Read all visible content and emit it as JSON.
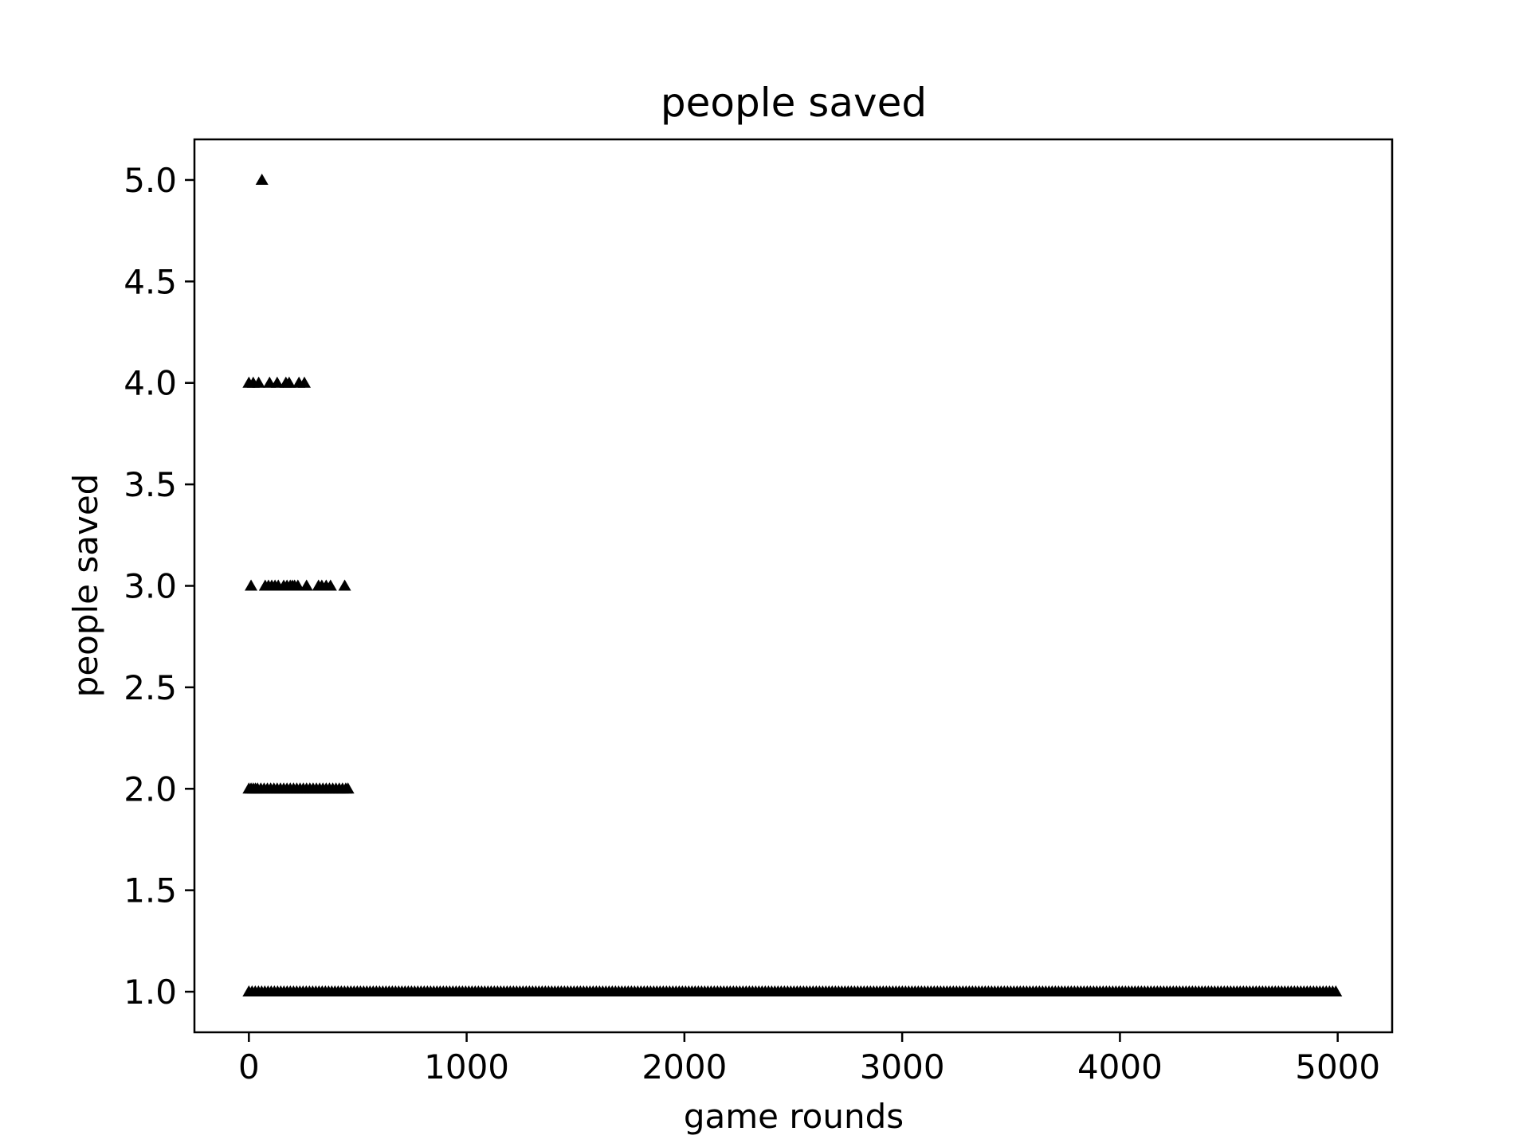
{
  "chart_data": {
    "type": "scatter",
    "title": "people saved",
    "xlabel": "game rounds",
    "ylabel": "people saved",
    "xlim": [
      -250,
      5250
    ],
    "ylim": [
      0.8,
      5.2
    ],
    "xticks": [
      0,
      1000,
      2000,
      3000,
      4000,
      5000
    ],
    "xtick_labels": [
      "0",
      "1000",
      "2000",
      "3000",
      "4000",
      "5000"
    ],
    "yticks": [
      1.0,
      1.5,
      2.0,
      2.5,
      3.0,
      3.5,
      4.0,
      4.5,
      5.0
    ],
    "ytick_labels": [
      "1.0",
      "1.5",
      "2.0",
      "2.5",
      "3.0",
      "3.5",
      "4.0",
      "4.5",
      "5.0"
    ],
    "marker": "triangle-up",
    "marker_color": "#000000",
    "grid": false,
    "legend": false,
    "series": [
      {
        "x_ranges": [
          [
            0,
            5000
          ]
        ],
        "y": 1,
        "note_kind": "dense"
      },
      {
        "x": [
          0,
          10,
          20,
          30,
          40,
          55,
          70,
          85,
          100,
          115,
          130,
          145,
          160,
          175,
          190,
          205,
          220,
          235,
          250,
          265,
          280,
          295,
          310,
          325,
          340,
          355,
          370,
          385,
          400,
          415,
          430,
          445,
          455
        ],
        "y": 2
      },
      {
        "x": [
          10,
          75,
          90,
          105,
          120,
          135,
          160,
          175,
          190,
          200,
          210,
          225,
          265,
          320,
          335,
          355,
          375,
          440
        ],
        "y": 3
      },
      {
        "x": [
          0,
          20,
          45,
          95,
          130,
          170,
          185,
          230,
          255
        ],
        "y": 4
      },
      {
        "x": [
          60
        ],
        "y": 5
      }
    ]
  }
}
